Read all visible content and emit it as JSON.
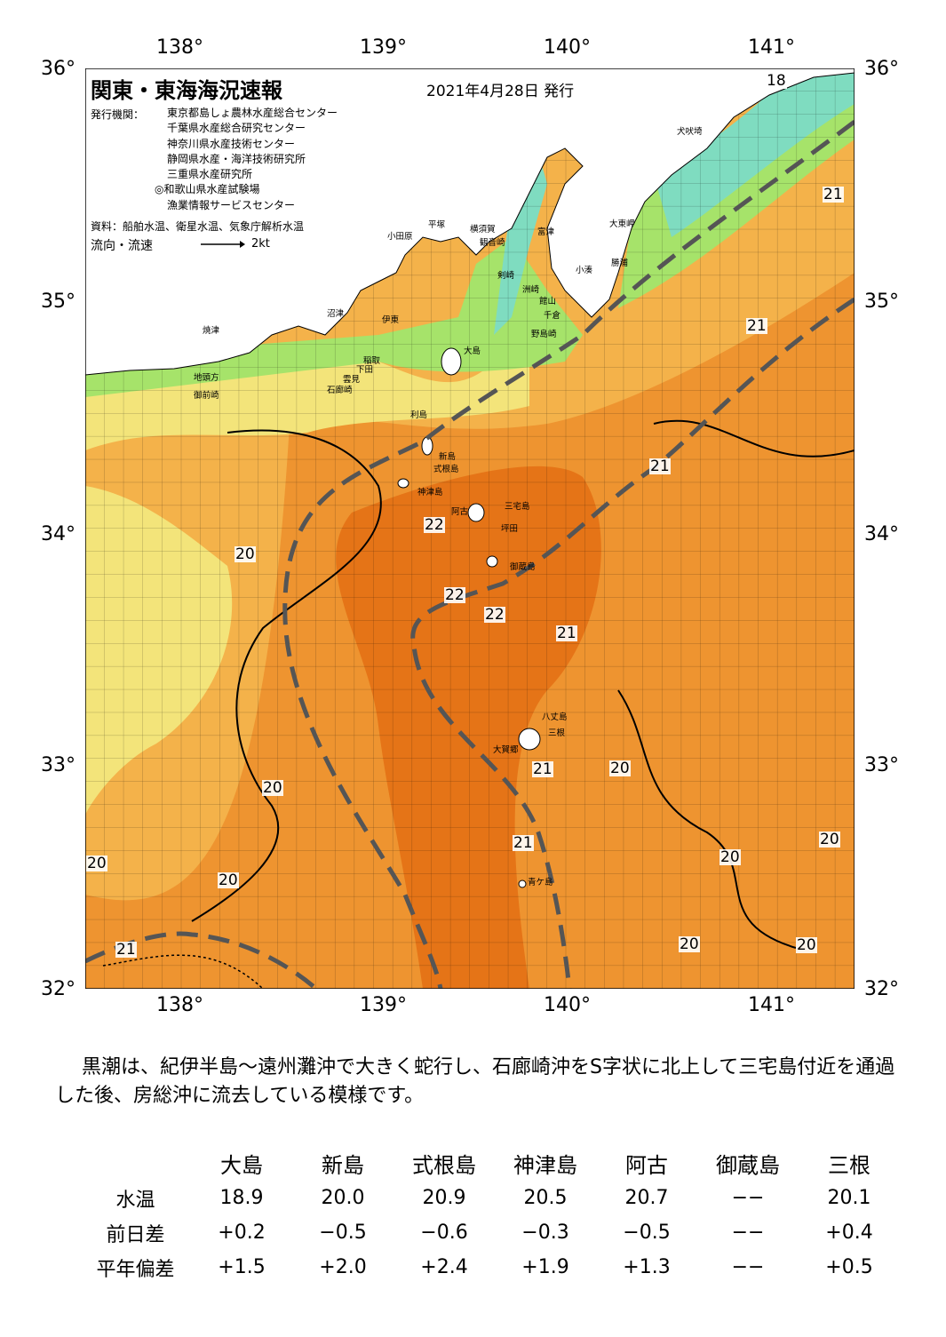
{
  "title": "関東・東海海況速報",
  "date": "2021年4月28日 発行",
  "issuer_label": "発行機関：",
  "issuers": [
    "東京都島しょ農林水産総合センター",
    "千葉県水産総合研究センター",
    "神奈川県水産技術センター",
    "静岡県水産・海洋技術研究所",
    "三重県水産研究所",
    "◎和歌山県水産試験場",
    "漁業情報サービスセンター"
  ],
  "source": "資料：船舶水温、衛星水温、気象庁解析水温",
  "flow_label": "流向・流速",
  "flow_unit": "2kt",
  "axes": {
    "lon": [
      "138°",
      "139°",
      "140°",
      "141°"
    ],
    "lat": [
      "36°",
      "35°",
      "34°",
      "33°",
      "32°"
    ]
  },
  "places": [
    "小田原",
    "平塚",
    "横須賀",
    "富津",
    "観音崎",
    "大東岬",
    "犬吠埼",
    "勝浦",
    "小湊",
    "剣崎",
    "洲崎",
    "館山",
    "千倉",
    "野島崎",
    "沼津",
    "伊東",
    "大島",
    "稲取",
    "下田",
    "雲見",
    "石廊崎",
    "焼津",
    "地頭方",
    "御前崎",
    "利島",
    "新島",
    "式根島",
    "神津島",
    "三宅島",
    "阿古",
    "坪田",
    "御蔵島",
    "八丈島",
    "三根",
    "大賀郷",
    "青ケ島"
  ],
  "isotherm_labels": [
    "18",
    "21",
    "21",
    "21",
    "22",
    "22",
    "22",
    "20",
    "21",
    "20",
    "21",
    "20",
    "21",
    "20",
    "20",
    "20",
    "20",
    "21",
    "20",
    "20"
  ],
  "description": "黒潮は、紀伊半島～遠州灘沖で大きく蛇行し、石廊崎沖をS字状に北上して三宅島付近を通過した後、房総沖に流去している模様です。",
  "table": {
    "stations": [
      "大島",
      "新島",
      "式根島",
      "神津島",
      "阿古",
      "御蔵島",
      "三根"
    ],
    "rows": [
      {
        "label": "水温",
        "values": [
          "18.9",
          "20.0",
          "20.9",
          "20.5",
          "20.7",
          "−−",
          "20.1"
        ]
      },
      {
        "label": "前日差",
        "values": [
          "+0.2",
          "−0.5",
          "−0.6",
          "−0.3",
          "−0.5",
          "−−",
          "+0.4"
        ]
      },
      {
        "label": "平年偏差",
        "values": [
          "+1.5",
          "+2.0",
          "+2.4",
          "+1.9",
          "+1.3",
          "−−",
          "+0.5"
        ]
      }
    ]
  },
  "colors": {
    "land": "#ffffff",
    "sea_cold": "#7fdcc0",
    "sea_cool": "#a6e36a",
    "sea_mild": "#f3e47a",
    "sea_warm": "#f4b24a",
    "sea_hot": "#ee9430",
    "kuroshio_core": "#e57417",
    "kuroshio_axis": "#555555"
  }
}
